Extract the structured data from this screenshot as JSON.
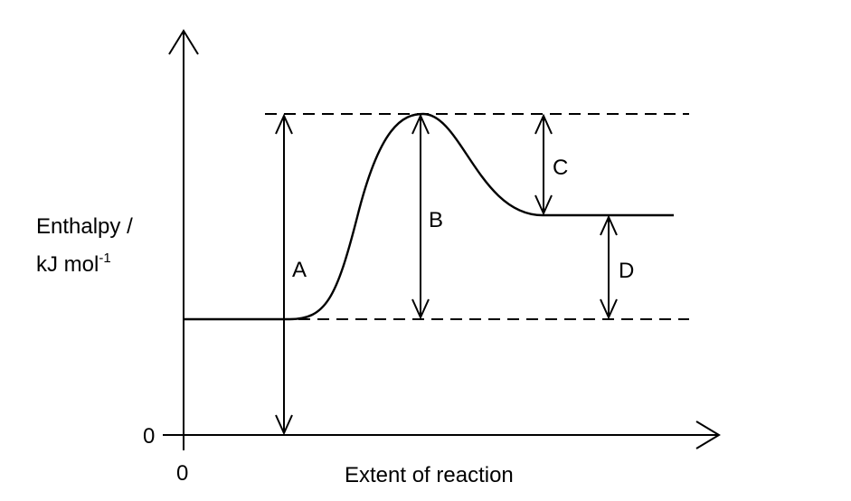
{
  "y_axis_label_line1": "Enthalpy /",
  "y_axis_label_line2": "kJ mol",
  "y_axis_label_superscript": "-1",
  "x_axis_label": "Extent of reaction",
  "y_origin_label": "0",
  "x_origin_label": "0",
  "arrow_labels": {
    "a": "A",
    "b": "B",
    "c": "C",
    "d": "D"
  }
}
